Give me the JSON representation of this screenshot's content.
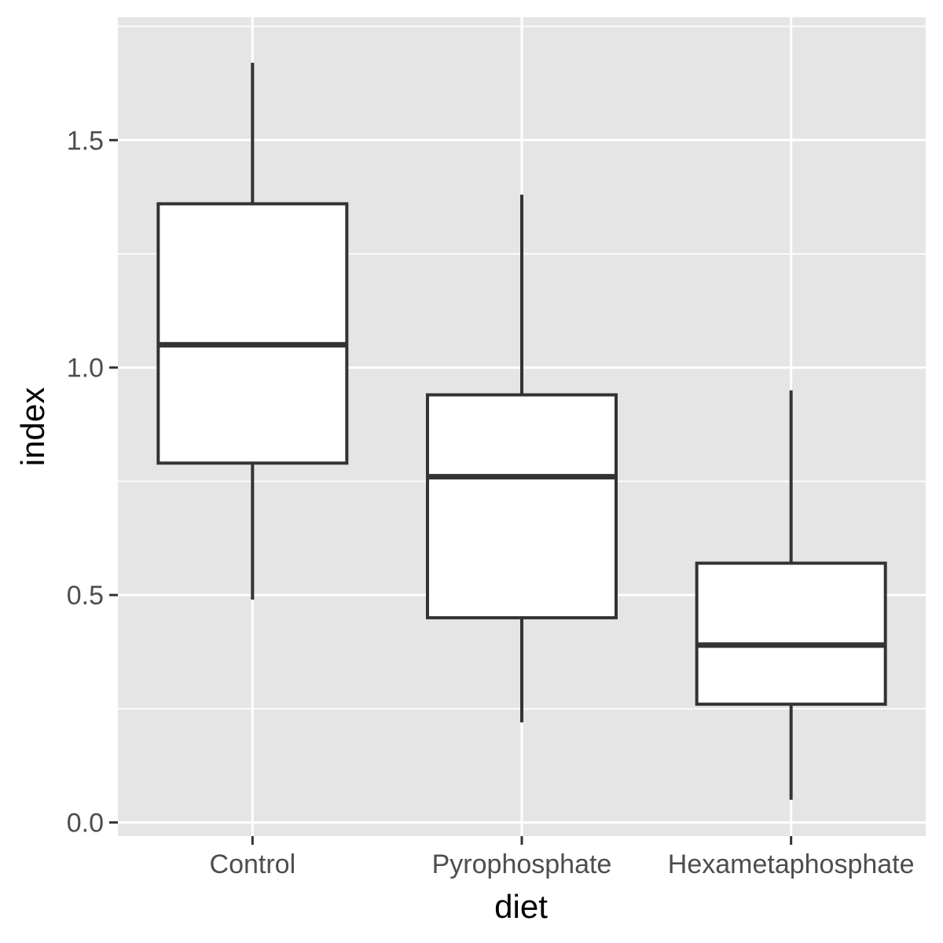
{
  "chart_data": {
    "type": "boxplot",
    "xlabel": "diet",
    "ylabel": "index",
    "ylim": [
      -0.03,
      1.77
    ],
    "y_ticks": [
      0.0,
      0.5,
      1.0,
      1.5
    ],
    "y_tick_labels": [
      "0.0",
      "0.5",
      "1.0",
      "1.5"
    ],
    "categories": [
      "Control",
      "Pyrophosphate",
      "Hexametaphosphate"
    ],
    "boxes": [
      {
        "category": "Control",
        "whisker_low": 0.49,
        "q1": 0.79,
        "median": 1.05,
        "q3": 1.36,
        "whisker_high": 1.67
      },
      {
        "category": "Pyrophosphate",
        "whisker_low": 0.22,
        "q1": 0.45,
        "median": 0.76,
        "q3": 0.94,
        "whisker_high": 1.38
      },
      {
        "category": "Hexametaphosphate",
        "whisker_low": 0.05,
        "q1": 0.26,
        "median": 0.39,
        "q3": 0.57,
        "whisker_high": 0.95
      }
    ],
    "grid": true,
    "colors": {
      "panel_background": "#e5e5e5",
      "grid": "#ffffff",
      "box_fill": "#ffffff",
      "box_stroke": "#333333",
      "tick_text": "#4d4d4d",
      "axis_title": "#000000"
    }
  }
}
